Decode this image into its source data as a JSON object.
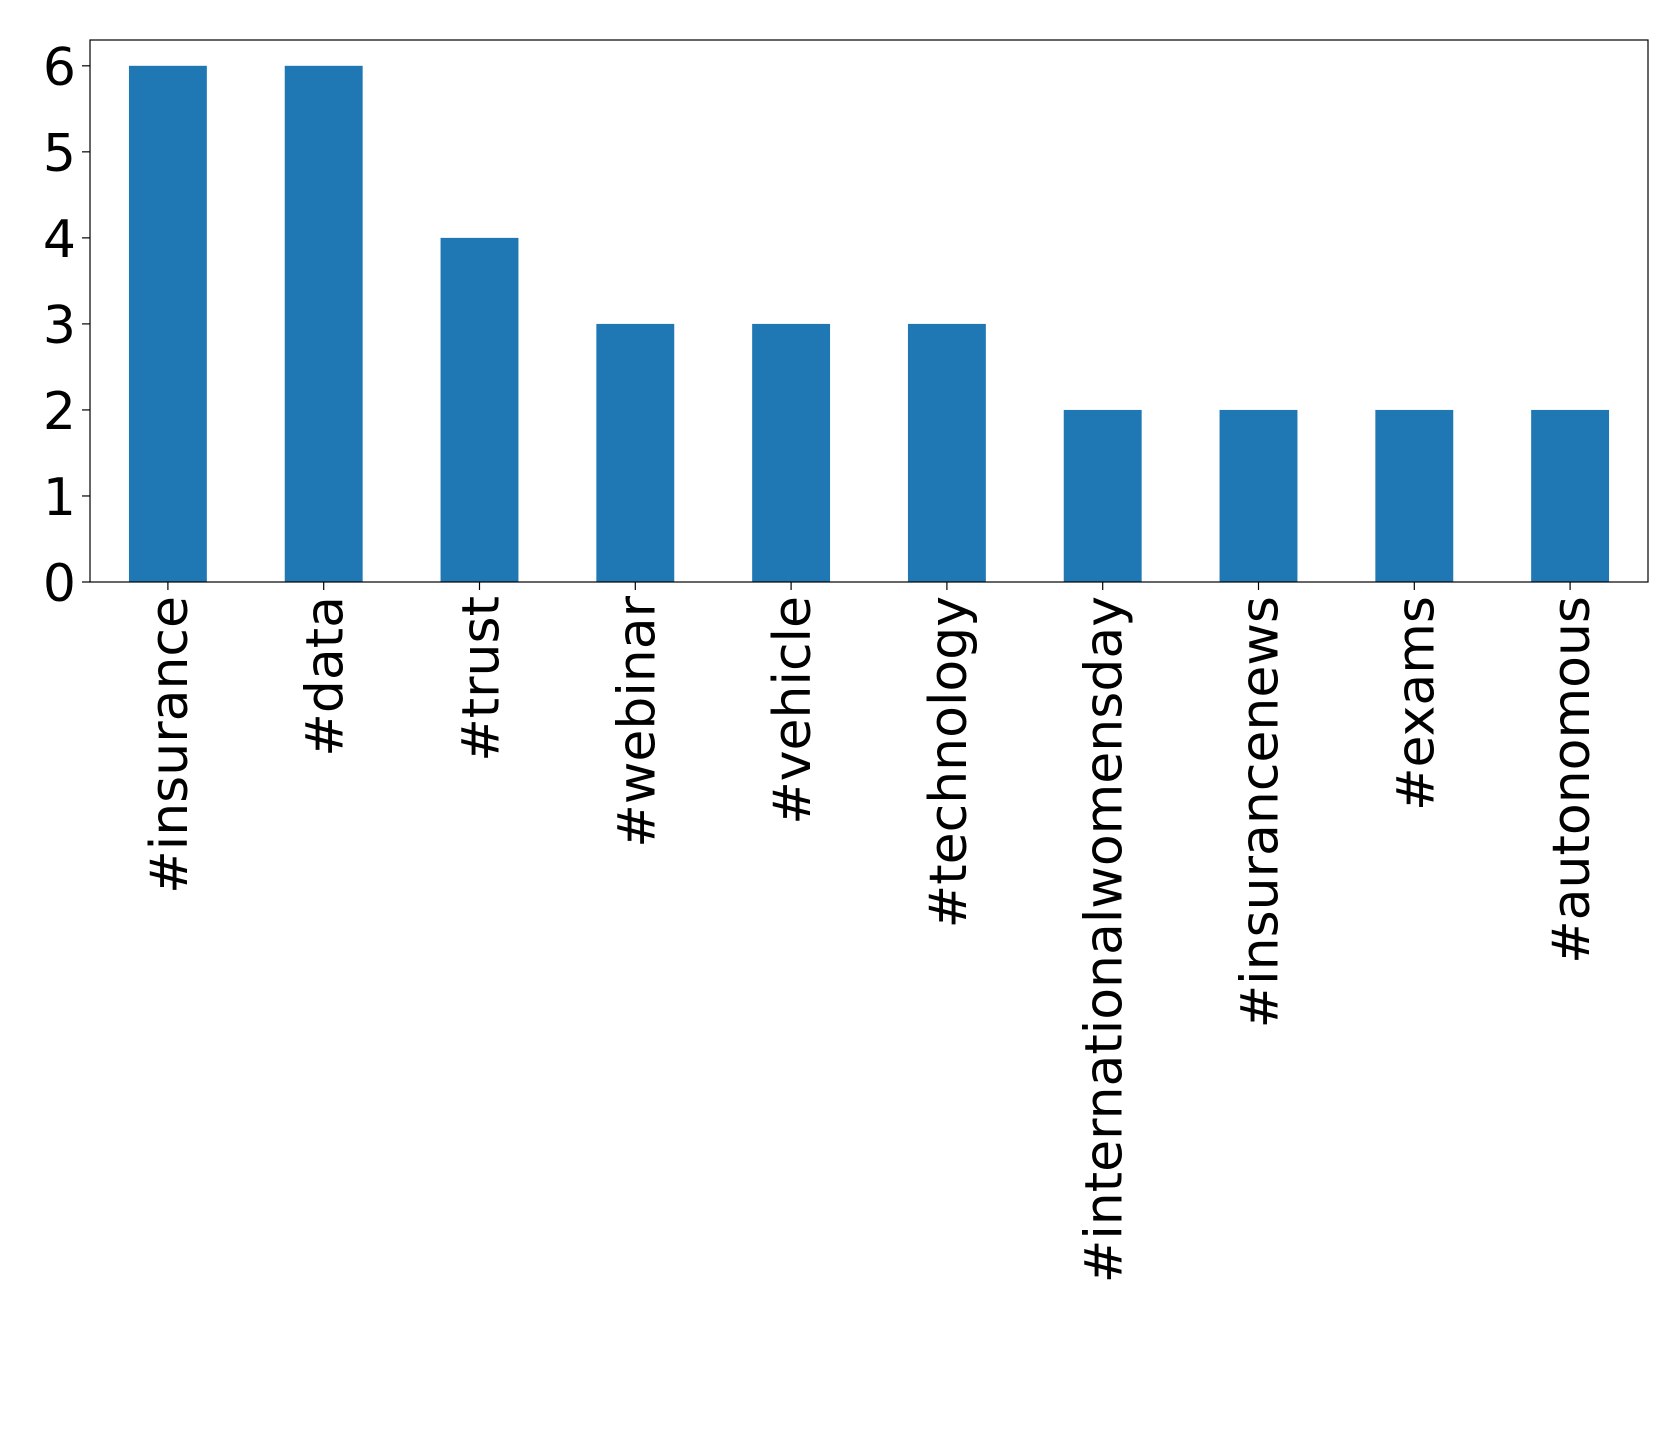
{
  "chart_data": {
    "type": "bar",
    "categories": [
      "#insurance",
      "#data",
      "#trust",
      "#webinar",
      "#vehicle",
      "#technology",
      "#internationalwomensday",
      "#insurancenews",
      "#exams",
      "#autonomous"
    ],
    "values": [
      6,
      6,
      4,
      3,
      3,
      3,
      2,
      2,
      2,
      2
    ],
    "color": "#1f77b4",
    "ylim": [
      0,
      6.3
    ],
    "yticks": [
      0,
      1,
      2,
      3,
      4,
      5,
      6
    ],
    "grid": false
  }
}
